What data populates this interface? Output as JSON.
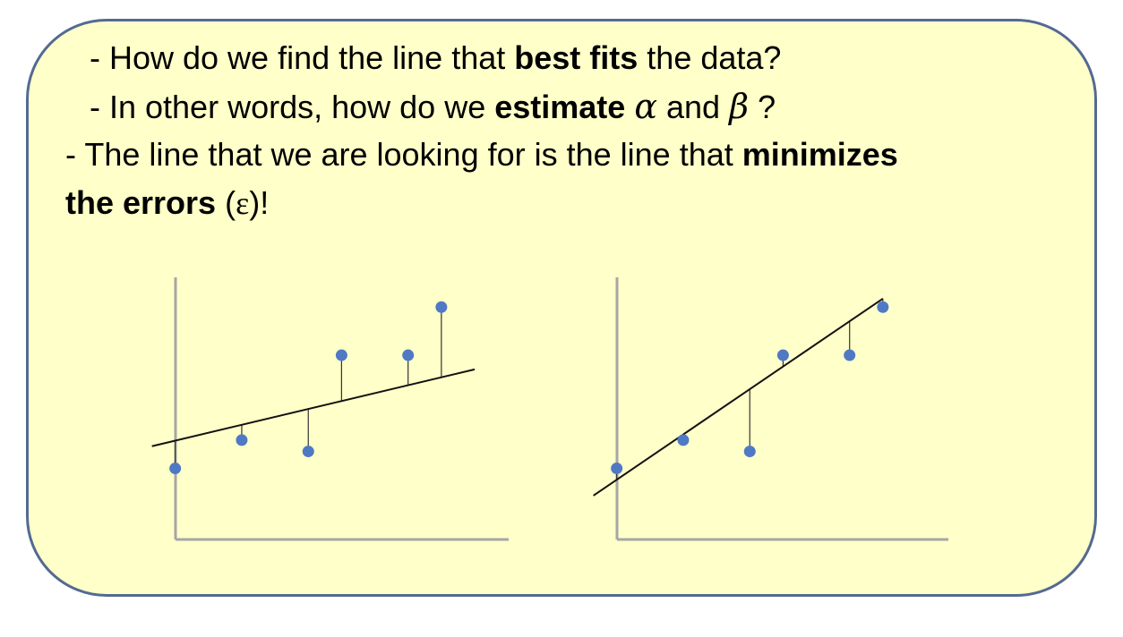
{
  "bullets": {
    "line1": {
      "prefix": "- How do we find the line that ",
      "bold": "best fits",
      "suffix": " the data?"
    },
    "line2": {
      "prefix": "- In other words, how do we ",
      "bold": "estimate",
      "alpha": "α",
      "middle": "and",
      "beta": "β",
      "suffix": "?"
    },
    "line3": {
      "prefix": "- The line that we are looking for is the line that ",
      "bold": "minimizes"
    },
    "line4": {
      "bold": "the errors",
      "open": " (",
      "epsilon": "ε",
      "close": ")!"
    }
  },
  "colors": {
    "background": "#ffffc9",
    "border": "#536a91",
    "points": "#4f79c4",
    "axes": "#a6a6a6"
  },
  "chart_data": [
    {
      "type": "scatter",
      "fit": "poor",
      "points": [
        [
          1,
          1.5
        ],
        [
          3,
          2.5
        ],
        [
          5,
          2.1
        ],
        [
          6,
          5.5
        ],
        [
          8,
          5.5
        ],
        [
          9,
          7.2
        ]
      ],
      "line": {
        "slope": 0.28,
        "intercept": 2.2
      },
      "residuals": true
    },
    {
      "type": "scatter",
      "fit": "best",
      "points": [
        [
          1,
          1.5
        ],
        [
          3,
          2.5
        ],
        [
          5,
          2.1
        ],
        [
          6,
          5.5
        ],
        [
          8,
          5.5
        ],
        [
          9,
          7.2
        ]
      ],
      "line": {
        "slope": 0.8,
        "intercept": 0.3
      },
      "residuals": true
    }
  ]
}
